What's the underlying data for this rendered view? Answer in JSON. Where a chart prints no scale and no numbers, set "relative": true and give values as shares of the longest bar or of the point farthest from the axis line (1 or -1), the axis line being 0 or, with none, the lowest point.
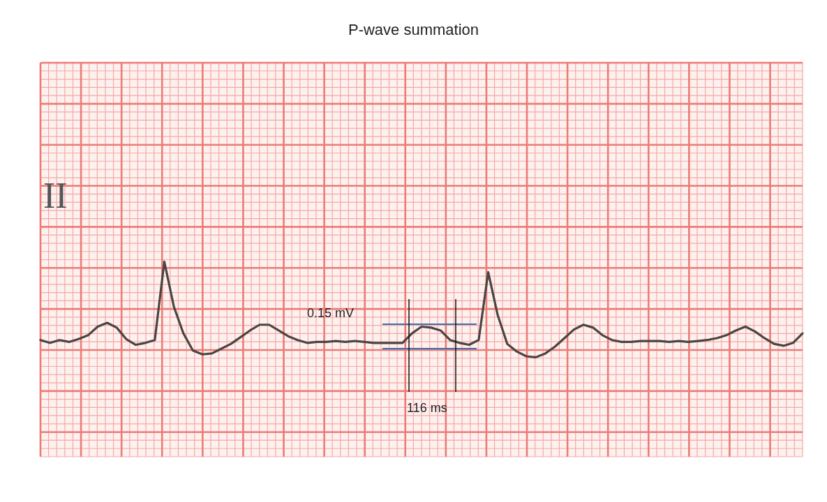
{
  "chart_data": {
    "type": "line",
    "title": "P-wave summation",
    "relative": true,
    "grid": true,
    "marker": "none",
    "line_style": "solid",
    "annotations": [
      "II",
      "0.15 mV",
      "116 ms"
    ],
    "categories": [
      null,
      null,
      null,
      null,
      null,
      null,
      null,
      null,
      null,
      null,
      null,
      null,
      null,
      null,
      null,
      null,
      null,
      null,
      null,
      null,
      null,
      null,
      null,
      null,
      null,
      null,
      null,
      null,
      null,
      null,
      null,
      null,
      null,
      null,
      null,
      null,
      null,
      null,
      null,
      null,
      null,
      null,
      null,
      null,
      null,
      null,
      null,
      null,
      null,
      null,
      null,
      null,
      null,
      null,
      null,
      null,
      null,
      null,
      null,
      null,
      null,
      null,
      null,
      null,
      null,
      null,
      null,
      null,
      null,
      null,
      null,
      null,
      null,
      null,
      null,
      null,
      null,
      null,
      null,
      null,
      null
    ],
    "series": [
      {
        "color": "#4a4542",
        "values": [
          0.18,
          0.15,
          0.18,
          0.16,
          0.19,
          0.23,
          0.32,
          0.36,
          0.31,
          0.19,
          0.13,
          0.15,
          0.18,
          1.0,
          0.53,
          0.25,
          0.07,
          0.03,
          0.04,
          0.09,
          0.14,
          0.21,
          0.28,
          0.34,
          0.34,
          0.28,
          0.22,
          0.18,
          0.15,
          0.16,
          0.16,
          0.17,
          0.16,
          0.17,
          0.16,
          0.15,
          0.15,
          0.15,
          0.15,
          0.25,
          0.32,
          0.31,
          0.28,
          0.18,
          0.15,
          0.13,
          0.18,
          0.89,
          0.44,
          0.14,
          0.06,
          0.01,
          0,
          0.04,
          0.11,
          0.2,
          0.29,
          0.34,
          0.31,
          0.23,
          0.18,
          0.16,
          0.16,
          0.17,
          0.17,
          0.17,
          0.16,
          0.17,
          0.16,
          0.17,
          0.18,
          0.2,
          0.23,
          0.28,
          0.32,
          0.27,
          0.2,
          0.14,
          0.12,
          0.15,
          0.25
        ]
      }
    ]
  }
}
